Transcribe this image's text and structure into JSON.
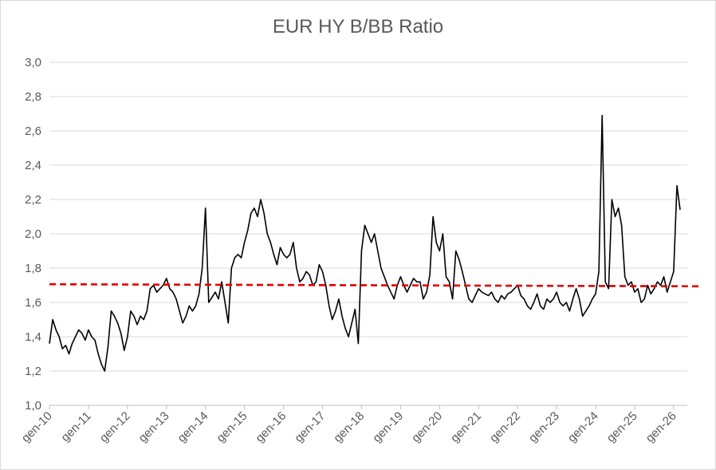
{
  "chart_data": {
    "type": "line",
    "title": "EUR HY B/BB Ratio",
    "xlabel": "",
    "ylabel": "",
    "ylim": [
      1.0,
      3.0
    ],
    "yticks": [
      "1,0",
      "1,2",
      "1,4",
      "1,6",
      "1,8",
      "2,0",
      "2,2",
      "2,4",
      "2,6",
      "2,8",
      "3,0"
    ],
    "xticks": [
      "gen-10",
      "gen-11",
      "gen-12",
      "gen-13",
      "gen-14",
      "gen-15",
      "gen-16",
      "gen-17",
      "gen-18",
      "gen-19",
      "gen-20",
      "gen-21",
      "gen-22",
      "gen-23",
      "gen-24",
      "gen-25",
      "gen-26"
    ],
    "grid": true,
    "legend": "none",
    "reference_line": {
      "value": 1.7,
      "color": "#e00000",
      "style": "dashed"
    },
    "series": [
      {
        "color": "#000000",
        "points": [
          [
            "2010-01",
            1.36
          ],
          [
            "2010-02",
            1.5
          ],
          [
            "2010-03",
            1.44
          ],
          [
            "2010-04",
            1.4
          ],
          [
            "2010-05",
            1.33
          ],
          [
            "2010-06",
            1.35
          ],
          [
            "2010-07",
            1.3
          ],
          [
            "2010-08",
            1.36
          ],
          [
            "2010-09",
            1.4
          ],
          [
            "2010-10",
            1.44
          ],
          [
            "2010-11",
            1.42
          ],
          [
            "2010-12",
            1.38
          ],
          [
            "2011-01",
            1.44
          ],
          [
            "2011-02",
            1.4
          ],
          [
            "2011-03",
            1.38
          ],
          [
            "2011-04",
            1.3
          ],
          [
            "2011-05",
            1.24
          ],
          [
            "2011-06",
            1.2
          ],
          [
            "2011-07",
            1.34
          ],
          [
            "2011-08",
            1.55
          ],
          [
            "2011-09",
            1.52
          ],
          [
            "2011-10",
            1.48
          ],
          [
            "2011-11",
            1.42
          ],
          [
            "2011-12",
            1.32
          ],
          [
            "2012-01",
            1.4
          ],
          [
            "2012-02",
            1.55
          ],
          [
            "2012-03",
            1.52
          ],
          [
            "2012-04",
            1.47
          ],
          [
            "2012-05",
            1.52
          ],
          [
            "2012-06",
            1.5
          ],
          [
            "2012-07",
            1.55
          ],
          [
            "2012-08",
            1.68
          ],
          [
            "2012-09",
            1.7
          ],
          [
            "2012-10",
            1.66
          ],
          [
            "2012-11",
            1.68
          ],
          [
            "2012-12",
            1.7
          ],
          [
            "2013-01",
            1.74
          ],
          [
            "2013-02",
            1.68
          ],
          [
            "2013-03",
            1.66
          ],
          [
            "2013-04",
            1.62
          ],
          [
            "2013-05",
            1.55
          ],
          [
            "2013-06",
            1.48
          ],
          [
            "2013-07",
            1.52
          ],
          [
            "2013-08",
            1.58
          ],
          [
            "2013-09",
            1.55
          ],
          [
            "2013-10",
            1.58
          ],
          [
            "2013-11",
            1.65
          ],
          [
            "2013-12",
            1.8
          ],
          [
            "2014-01",
            2.15
          ],
          [
            "2014-02",
            1.6
          ],
          [
            "2014-03",
            1.63
          ],
          [
            "2014-04",
            1.66
          ],
          [
            "2014-05",
            1.62
          ],
          [
            "2014-06",
            1.72
          ],
          [
            "2014-07",
            1.6
          ],
          [
            "2014-08",
            1.48
          ],
          [
            "2014-09",
            1.8
          ],
          [
            "2014-10",
            1.86
          ],
          [
            "2014-11",
            1.88
          ],
          [
            "2014-12",
            1.86
          ],
          [
            "2015-01",
            1.95
          ],
          [
            "2015-02",
            2.02
          ],
          [
            "2015-03",
            2.12
          ],
          [
            "2015-04",
            2.15
          ],
          [
            "2015-05",
            2.1
          ],
          [
            "2015-06",
            2.2
          ],
          [
            "2015-07",
            2.12
          ],
          [
            "2015-08",
            2.0
          ],
          [
            "2015-09",
            1.95
          ],
          [
            "2015-10",
            1.88
          ],
          [
            "2015-11",
            1.82
          ],
          [
            "2015-12",
            1.92
          ],
          [
            "2016-01",
            1.88
          ],
          [
            "2016-02",
            1.86
          ],
          [
            "2016-03",
            1.88
          ],
          [
            "2016-04",
            1.95
          ],
          [
            "2016-05",
            1.8
          ],
          [
            "2016-06",
            1.72
          ],
          [
            "2016-07",
            1.74
          ],
          [
            "2016-08",
            1.78
          ],
          [
            "2016-09",
            1.76
          ],
          [
            "2016-10",
            1.7
          ],
          [
            "2016-11",
            1.72
          ],
          [
            "2016-12",
            1.82
          ],
          [
            "2017-01",
            1.78
          ],
          [
            "2017-02",
            1.7
          ],
          [
            "2017-03",
            1.58
          ],
          [
            "2017-04",
            1.5
          ],
          [
            "2017-05",
            1.55
          ],
          [
            "2017-06",
            1.62
          ],
          [
            "2017-07",
            1.52
          ],
          [
            "2017-08",
            1.45
          ],
          [
            "2017-09",
            1.4
          ],
          [
            "2017-10",
            1.48
          ],
          [
            "2017-11",
            1.56
          ],
          [
            "2017-12",
            1.36
          ],
          [
            "2018-01",
            1.9
          ],
          [
            "2018-02",
            2.05
          ],
          [
            "2018-03",
            2.0
          ],
          [
            "2018-04",
            1.95
          ],
          [
            "2018-05",
            2.0
          ],
          [
            "2018-06",
            1.9
          ],
          [
            "2018-07",
            1.8
          ],
          [
            "2018-08",
            1.75
          ],
          [
            "2018-09",
            1.7
          ],
          [
            "2018-10",
            1.66
          ],
          [
            "2018-11",
            1.62
          ],
          [
            "2018-12",
            1.7
          ],
          [
            "2019-01",
            1.75
          ],
          [
            "2019-02",
            1.7
          ],
          [
            "2019-03",
            1.66
          ],
          [
            "2019-04",
            1.7
          ],
          [
            "2019-05",
            1.74
          ],
          [
            "2019-06",
            1.72
          ],
          [
            "2019-07",
            1.72
          ],
          [
            "2019-08",
            1.62
          ],
          [
            "2019-09",
            1.66
          ],
          [
            "2019-10",
            1.76
          ],
          [
            "2019-11",
            2.1
          ],
          [
            "2019-12",
            1.95
          ],
          [
            "2020-01",
            1.9
          ],
          [
            "2020-02",
            2.0
          ],
          [
            "2020-03",
            1.75
          ],
          [
            "2020-04",
            1.72
          ],
          [
            "2020-05",
            1.62
          ],
          [
            "2020-06",
            1.9
          ],
          [
            "2020-07",
            1.85
          ],
          [
            "2020-08",
            1.78
          ],
          [
            "2020-09",
            1.7
          ],
          [
            "2020-10",
            1.62
          ],
          [
            "2020-11",
            1.6
          ],
          [
            "2020-12",
            1.64
          ],
          [
            "2021-01",
            1.68
          ],
          [
            "2021-02",
            1.66
          ],
          [
            "2021-03",
            1.65
          ],
          [
            "2021-04",
            1.64
          ],
          [
            "2021-05",
            1.66
          ],
          [
            "2021-06",
            1.62
          ],
          [
            "2021-07",
            1.6
          ],
          [
            "2021-08",
            1.64
          ],
          [
            "2021-09",
            1.62
          ],
          [
            "2021-10",
            1.65
          ],
          [
            "2021-11",
            1.66
          ],
          [
            "2021-12",
            1.68
          ],
          [
            "2022-01",
            1.7
          ],
          [
            "2022-02",
            1.64
          ],
          [
            "2022-03",
            1.62
          ],
          [
            "2022-04",
            1.58
          ],
          [
            "2022-05",
            1.56
          ],
          [
            "2022-06",
            1.6
          ],
          [
            "2022-07",
            1.65
          ],
          [
            "2022-08",
            1.58
          ],
          [
            "2022-09",
            1.56
          ],
          [
            "2022-10",
            1.62
          ],
          [
            "2022-11",
            1.6
          ],
          [
            "2022-12",
            1.62
          ],
          [
            "2023-01",
            1.66
          ],
          [
            "2023-02",
            1.6
          ],
          [
            "2023-03",
            1.58
          ],
          [
            "2023-04",
            1.6
          ],
          [
            "2023-05",
            1.55
          ],
          [
            "2023-06",
            1.62
          ],
          [
            "2023-07",
            1.68
          ],
          [
            "2023-08",
            1.62
          ],
          [
            "2023-09",
            1.52
          ],
          [
            "2023-10",
            1.55
          ],
          [
            "2023-11",
            1.58
          ],
          [
            "2023-12",
            1.62
          ],
          [
            "2024-01",
            1.65
          ],
          [
            "2024-02",
            1.78
          ],
          [
            "2024-03",
            2.69
          ],
          [
            "2024-04",
            1.72
          ],
          [
            "2024-05",
            1.68
          ],
          [
            "2024-06",
            2.2
          ],
          [
            "2024-07",
            2.1
          ],
          [
            "2024-08",
            2.15
          ],
          [
            "2024-09",
            2.05
          ],
          [
            "2024-10",
            1.75
          ],
          [
            "2024-11",
            1.7
          ],
          [
            "2024-12",
            1.72
          ],
          [
            "2025-01",
            1.66
          ],
          [
            "2025-02",
            1.68
          ],
          [
            "2025-03",
            1.6
          ],
          [
            "2025-04",
            1.62
          ],
          [
            "2025-05",
            1.7
          ],
          [
            "2025-06",
            1.65
          ],
          [
            "2025-07",
            1.68
          ],
          [
            "2025-08",
            1.72
          ],
          [
            "2025-09",
            1.7
          ],
          [
            "2025-10",
            1.75
          ],
          [
            "2025-11",
            1.66
          ],
          [
            "2025-12",
            1.72
          ],
          [
            "2026-01",
            1.78
          ],
          [
            "2026-02",
            2.28
          ],
          [
            "2026-03",
            2.14
          ]
        ]
      }
    ]
  }
}
